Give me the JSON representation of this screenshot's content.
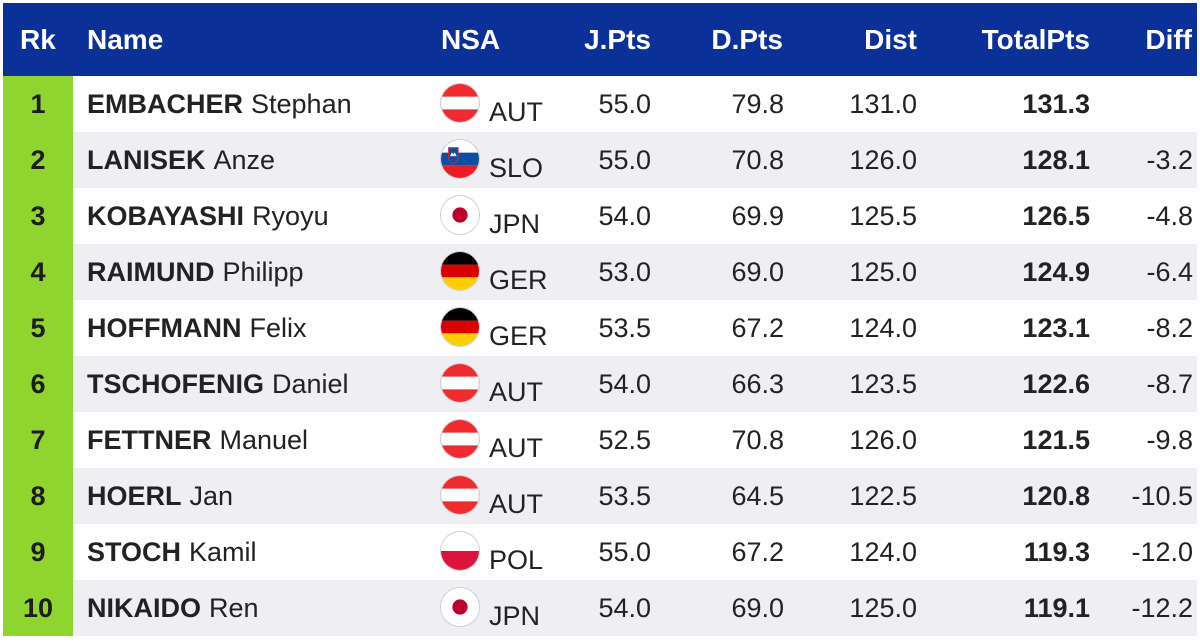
{
  "headers": {
    "rk": "Rk",
    "name": "Name",
    "nsa": "NSA",
    "jpts": "J.Pts",
    "dpts": "D.Pts",
    "dist": "Dist",
    "total_line1": "Total",
    "total_line2": "Pts",
    "diff": "Diff"
  },
  "colors": {
    "header_bg": "#0b3199",
    "rank_bg": "#8fd42f",
    "row_alt_bg": "#eeeef3"
  },
  "rows": [
    {
      "rk": "1",
      "last": "EMBACHER",
      "first": "Stephan",
      "nsa": "AUT",
      "flag": "austria-flag-icon",
      "jpts": "55.0",
      "dpts": "79.8",
      "dist": "131.0",
      "total": "131.3",
      "diff": ""
    },
    {
      "rk": "2",
      "last": "LANISEK",
      "first": "Anze",
      "nsa": "SLO",
      "flag": "slovenia-flag-icon",
      "jpts": "55.0",
      "dpts": "70.8",
      "dist": "126.0",
      "total": "128.1",
      "diff": "-3.2"
    },
    {
      "rk": "3",
      "last": "KOBAYASHI",
      "first": "Ryoyu",
      "nsa": "JPN",
      "flag": "japan-flag-icon",
      "jpts": "54.0",
      "dpts": "69.9",
      "dist": "125.5",
      "total": "126.5",
      "diff": "-4.8"
    },
    {
      "rk": "4",
      "last": "RAIMUND",
      "first": "Philipp",
      "nsa": "GER",
      "flag": "germany-flag-icon",
      "jpts": "53.0",
      "dpts": "69.0",
      "dist": "125.0",
      "total": "124.9",
      "diff": "-6.4"
    },
    {
      "rk": "5",
      "last": "HOFFMANN",
      "first": "Felix",
      "nsa": "GER",
      "flag": "germany-flag-icon",
      "jpts": "53.5",
      "dpts": "67.2",
      "dist": "124.0",
      "total": "123.1",
      "diff": "-8.2"
    },
    {
      "rk": "6",
      "last": "TSCHOFENIG",
      "first": "Daniel",
      "nsa": "AUT",
      "flag": "austria-flag-icon",
      "jpts": "54.0",
      "dpts": "66.3",
      "dist": "123.5",
      "total": "122.6",
      "diff": "-8.7"
    },
    {
      "rk": "7",
      "last": "FETTNER",
      "first": "Manuel",
      "nsa": "AUT",
      "flag": "austria-flag-icon",
      "jpts": "52.5",
      "dpts": "70.8",
      "dist": "126.0",
      "total": "121.5",
      "diff": "-9.8"
    },
    {
      "rk": "8",
      "last": "HOERL",
      "first": "Jan",
      "nsa": "AUT",
      "flag": "austria-flag-icon",
      "jpts": "53.5",
      "dpts": "64.5",
      "dist": "122.5",
      "total": "120.8",
      "diff": "-10.5"
    },
    {
      "rk": "9",
      "last": "STOCH",
      "first": "Kamil",
      "nsa": "POL",
      "flag": "poland-flag-icon",
      "jpts": "55.0",
      "dpts": "67.2",
      "dist": "124.0",
      "total": "119.3",
      "diff": "-12.0"
    },
    {
      "rk": "10",
      "last": "NIKAIDO",
      "first": "Ren",
      "nsa": "JPN",
      "flag": "japan-flag-icon",
      "jpts": "54.0",
      "dpts": "69.0",
      "dist": "125.0",
      "total": "119.1",
      "diff": "-12.2"
    }
  ]
}
